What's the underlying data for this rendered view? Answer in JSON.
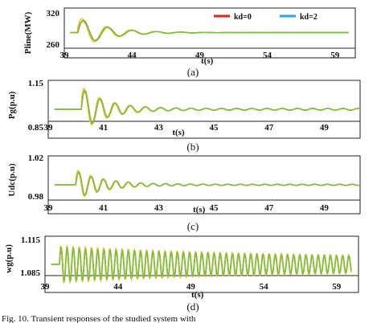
{
  "legend": [
    {
      "label": "kd=0",
      "color": "#e02424"
    },
    {
      "label": "kd=2",
      "color": "#29a9e0"
    }
  ],
  "footer_text": "Fig. 10. Transient responses of the studied system with",
  "chart_data": [
    {
      "type": "line",
      "caption": "(a)",
      "ylabel": "Pline(MW)",
      "xlabel": "t(s)",
      "xlim": [
        39,
        60.5
      ],
      "ylim": [
        255,
        322
      ],
      "xticks": [
        "39",
        "44",
        "49",
        "54",
        "59"
      ],
      "yticks": [
        "320",
        "260"
      ],
      "steady": 289,
      "t0": 40,
      "amp": 20,
      "tau": 2.2,
      "period": 1.8,
      "end": 60,
      "grid": false
    },
    {
      "type": "line",
      "caption": "(b)",
      "ylabel": "Pg(p.u)",
      "xlabel": "t(s)",
      "xlim": [
        39,
        50.3
      ],
      "ylim": [
        0.82,
        1.18
      ],
      "xticks": [
        "39",
        "41",
        "43",
        "45",
        "47",
        "49"
      ],
      "yticks": [
        "1.15",
        "0.85"
      ],
      "steady": 1.0,
      "t0": 40.2,
      "amp": 0.13,
      "tau": 0.9,
      "period": 0.55,
      "end": 50.3,
      "grid": false
    },
    {
      "type": "line",
      "caption": "(c)",
      "ylabel": "Udc(p.u)",
      "xlabel": "t(s)",
      "xlim": [
        39,
        50.3
      ],
      "ylim": [
        0.975,
        1.025
      ],
      "xticks": [
        "39",
        "41",
        "43",
        "45",
        "47",
        "49"
      ],
      "yticks": [
        "1.02",
        "0.98"
      ],
      "steady": 1.0,
      "t0": 40.0,
      "amp": 0.012,
      "tau": 1.0,
      "period": 0.45,
      "end": 50.3,
      "grid": false
    },
    {
      "type": "line",
      "caption": "(d)",
      "ylabel": "wg(p.u)",
      "xlabel": "t(s)",
      "xlim": [
        39,
        60.5
      ],
      "ylim": [
        1.082,
        1.118
      ],
      "xticks": [
        "39",
        "44",
        "49",
        "54",
        "59"
      ],
      "yticks": [
        "1.115",
        "1.085"
      ],
      "steady": 1.1,
      "t0": 40.0,
      "amp": 0.011,
      "tau": 14,
      "period": 0.42,
      "end": 60,
      "grid": false
    }
  ]
}
